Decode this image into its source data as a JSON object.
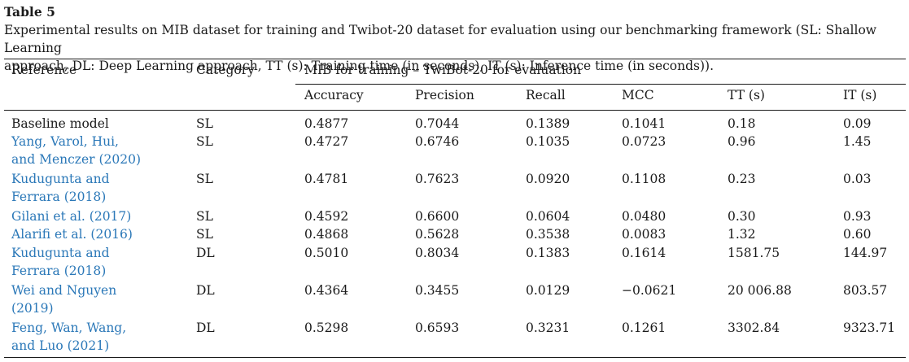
{
  "table": {
    "label": "Table 5",
    "caption_line1": "Experimental results on MIB dataset for training and Twibot-20 dataset for evaluation using our benchmarking framework (SL: Shallow Learning",
    "caption_line2": "approach, DL: Deep Learning approach, TT (s): Training time (in seconds), IT (s): Inference time (in seconds)).",
    "headers": {
      "reference": "Reference",
      "category": "Category",
      "group": "MIB for training – TwiBot-20 for evaluation",
      "metrics": [
        "Accuracy",
        "Precision",
        "Recall",
        "MCC",
        "TT (s)",
        "IT (s)"
      ]
    },
    "rows": [
      {
        "ref_line1": "Baseline model",
        "ref_line2": "",
        "year": "",
        "category": "SL",
        "values": [
          "0.4877",
          "0.7044",
          "0.1389",
          "0.1041",
          "0.18",
          "0.09"
        ]
      },
      {
        "ref_line1": "Yang, Varol, Hui,",
        "ref_line2": "and Menczer (",
        "year": "2020",
        "category": "SL",
        "values": [
          "0.4727",
          "0.6746",
          "0.1035",
          "0.0723",
          "0.96",
          "1.45"
        ]
      },
      {
        "ref_line1": "Kudugunta and",
        "ref_line2": "Ferrara (",
        "year": "2018",
        "category": "SL",
        "values": [
          "0.4781",
          "0.7623",
          "0.0920",
          "0.1108",
          "0.23",
          "0.03"
        ]
      },
      {
        "ref_line1": "Gilani et al. (",
        "ref_line2": "",
        "year": "2017",
        "category": "SL",
        "values": [
          "0.4592",
          "0.6600",
          "0.0604",
          "0.0480",
          "0.30",
          "0.93"
        ]
      },
      {
        "ref_line1": "Alarifi et al. (",
        "ref_line2": "",
        "year": "2016",
        "category": "SL",
        "values": [
          "0.4868",
          "0.5628",
          "0.3538",
          "0.0083",
          "1.32",
          "0.60"
        ]
      },
      {
        "ref_line1": "Kudugunta and",
        "ref_line2": "Ferrara (",
        "year": "2018",
        "category": "DL",
        "values": [
          "0.5010",
          "0.8034",
          "0.1383",
          "0.1614",
          "1581.75",
          "144.97"
        ]
      },
      {
        "ref_line1": "Wei and Nguyen",
        "ref_line2": "(",
        "year": "2019",
        "category": "DL",
        "values": [
          "0.4364",
          "0.3455",
          "0.0129",
          "−0.0621",
          "20 006.88",
          "803.57"
        ]
      },
      {
        "ref_line1": "Feng, Wan, Wang,",
        "ref_line2": "and Luo (",
        "year": "2021",
        "category": "DL",
        "values": [
          "0.5298",
          "0.6593",
          "0.3231",
          "0.1261",
          "3302.84",
          "9323.71"
        ]
      }
    ]
  }
}
